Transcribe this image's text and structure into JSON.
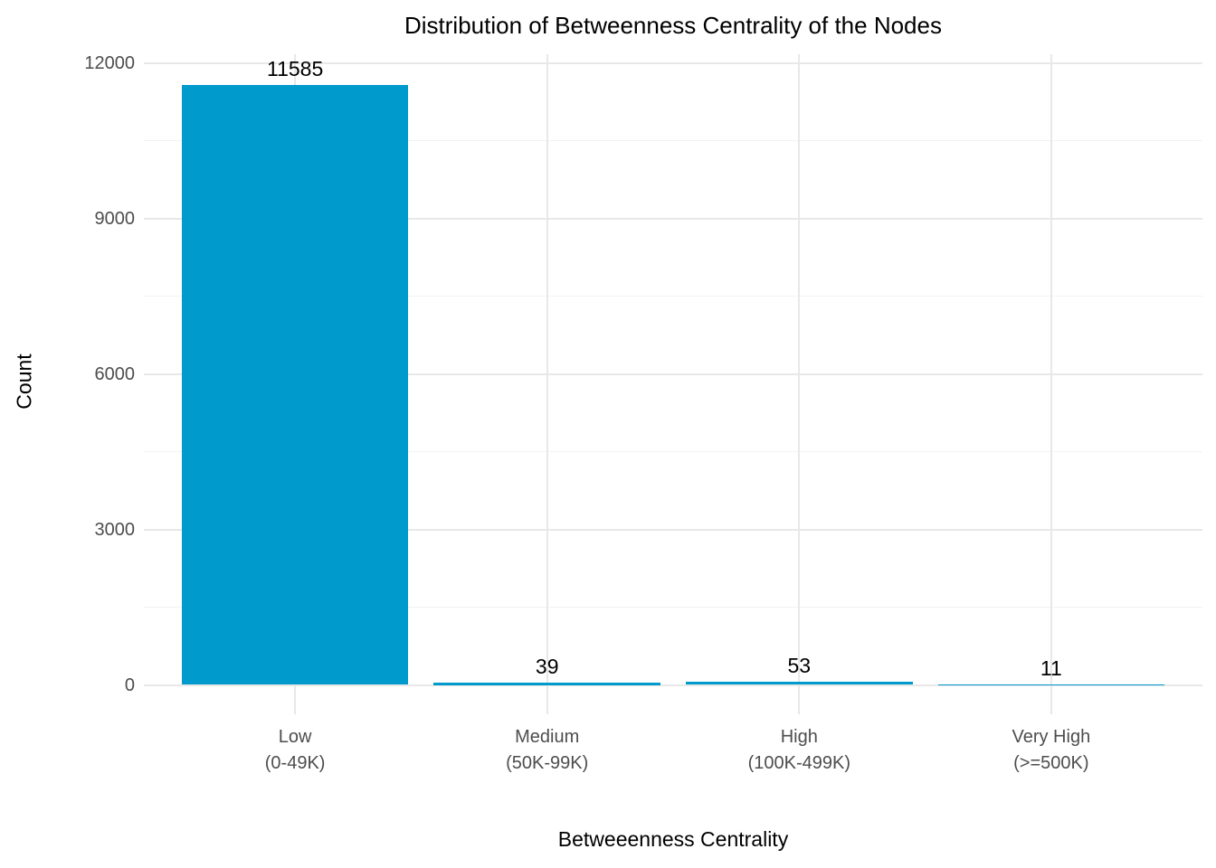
{
  "chart_data": {
    "type": "bar",
    "title": "Distribution of Betweenness Centrality of the Nodes",
    "xlabel": "Betweeenness Centrality",
    "ylabel": "Count",
    "categories": [
      {
        "label": "Low",
        "range": "(0-49K)"
      },
      {
        "label": "Medium",
        "range": "(50K-99K)"
      },
      {
        "label": "High",
        "range": "(100K-499K)"
      },
      {
        "label": "Very High",
        "range": "(>=500K)"
      }
    ],
    "values": [
      11585,
      39,
      53,
      11
    ],
    "value_labels": [
      "11585",
      "39",
      "53",
      "11"
    ],
    "y_ticks": [
      0,
      3000,
      6000,
      9000,
      12000
    ],
    "y_minor_ticks": [
      1500,
      4500,
      7500,
      10500
    ],
    "ylim": [
      0,
      12000
    ],
    "grid": true,
    "legend": "none",
    "bar_color": "#009ACD",
    "tick_label_color": "#4D4D4D",
    "text_color": "#000000",
    "background_color": "#FFFFFF"
  }
}
